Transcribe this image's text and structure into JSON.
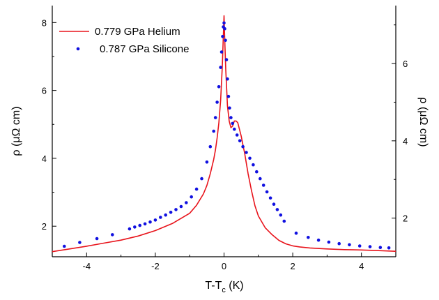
{
  "chart_data": {
    "type": "line",
    "xlabel": "T-T",
    "xlabel_sub": "c",
    "xlabel_unit": " (K)",
    "ylabel_left": "ρ (μΩ cm)",
    "ylabel_right": "ρ (μΩ cm)",
    "xlim": [
      -5,
      5
    ],
    "ylim_left": [
      1.1,
      8.5
    ],
    "ylim_right": [
      1.0,
      7.5
    ],
    "x_ticks": [
      -4,
      -2,
      0,
      2,
      4
    ],
    "x_tick_labels": [
      "-4",
      "-2",
      "0",
      "2",
      "4"
    ],
    "y_left_ticks": [
      2,
      4,
      6,
      8
    ],
    "y_left_tick_labels": [
      "2",
      "4",
      "6",
      "8"
    ],
    "y_right_ticks": [
      2,
      4,
      6
    ],
    "y_right_tick_labels": [
      "2",
      "4",
      "6"
    ],
    "grid": false,
    "legend_position": "top-left",
    "series": [
      {
        "name": "0.779 GPa Helium",
        "axis": "left",
        "style": "line",
        "color": "#e8131b",
        "x": [
          -5.0,
          -4.5,
          -4.0,
          -3.5,
          -3.0,
          -2.5,
          -2.0,
          -1.5,
          -1.0,
          -0.8,
          -0.6,
          -0.5,
          -0.4,
          -0.3,
          -0.25,
          -0.2,
          -0.15,
          -0.1,
          -0.05,
          0.0,
          0.02,
          0.05,
          0.08,
          0.1,
          0.15,
          0.2,
          0.25,
          0.3,
          0.35,
          0.4,
          0.45,
          0.5,
          0.55,
          0.6,
          0.7,
          0.8,
          0.9,
          1.0,
          1.2,
          1.4,
          1.6,
          1.8,
          2.0,
          2.2,
          2.5,
          3.0,
          3.5,
          4.0,
          4.5,
          5.0
        ],
        "y": [
          1.25,
          1.33,
          1.41,
          1.5,
          1.59,
          1.71,
          1.87,
          2.08,
          2.38,
          2.62,
          2.95,
          3.2,
          3.55,
          3.97,
          4.25,
          4.6,
          5.05,
          5.7,
          6.7,
          8.2,
          7.5,
          6.6,
          6.0,
          5.55,
          5.1,
          4.9,
          4.95,
          5.1,
          5.1,
          5.05,
          4.85,
          4.65,
          4.4,
          4.15,
          3.55,
          3.05,
          2.6,
          2.3,
          1.95,
          1.75,
          1.58,
          1.48,
          1.42,
          1.39,
          1.36,
          1.33,
          1.31,
          1.3,
          1.28,
          1.26
        ]
      },
      {
        "name": "0.787 GPa Silicone",
        "axis": "right",
        "style": "dots",
        "color": "#1010e0",
        "x": [
          -4.65,
          -4.2,
          -3.7,
          -3.25,
          -2.75,
          -2.6,
          -2.45,
          -2.3,
          -2.15,
          -2.0,
          -1.85,
          -1.7,
          -1.55,
          -1.4,
          -1.25,
          -1.1,
          -0.95,
          -0.8,
          -0.65,
          -0.5,
          -0.4,
          -0.3,
          -0.25,
          -0.2,
          -0.15,
          -0.1,
          -0.07,
          -0.04,
          -0.02,
          0.0,
          0.02,
          0.04,
          0.07,
          0.1,
          0.13,
          0.16,
          0.2,
          0.25,
          0.3,
          0.38,
          0.46,
          0.55,
          0.65,
          0.75,
          0.85,
          0.95,
          1.05,
          1.15,
          1.25,
          1.35,
          1.45,
          1.55,
          1.65,
          1.75,
          2.1,
          2.45,
          2.75,
          3.05,
          3.35,
          3.65,
          3.95,
          4.25,
          4.55,
          4.8
        ],
        "y": [
          1.27,
          1.37,
          1.47,
          1.57,
          1.72,
          1.77,
          1.81,
          1.85,
          1.9,
          1.95,
          2.02,
          2.08,
          2.15,
          2.22,
          2.3,
          2.4,
          2.55,
          2.75,
          3.02,
          3.45,
          3.85,
          4.25,
          4.6,
          5.0,
          5.4,
          5.9,
          6.3,
          6.7,
          6.95,
          7.05,
          6.9,
          6.6,
          6.1,
          5.6,
          5.15,
          4.85,
          4.6,
          4.45,
          4.3,
          4.15,
          4.0,
          3.85,
          3.7,
          3.55,
          3.38,
          3.2,
          3.02,
          2.85,
          2.68,
          2.52,
          2.36,
          2.22,
          2.08,
          1.92,
          1.61,
          1.5,
          1.43,
          1.38,
          1.34,
          1.31,
          1.28,
          1.26,
          1.24,
          1.23
        ]
      }
    ]
  }
}
